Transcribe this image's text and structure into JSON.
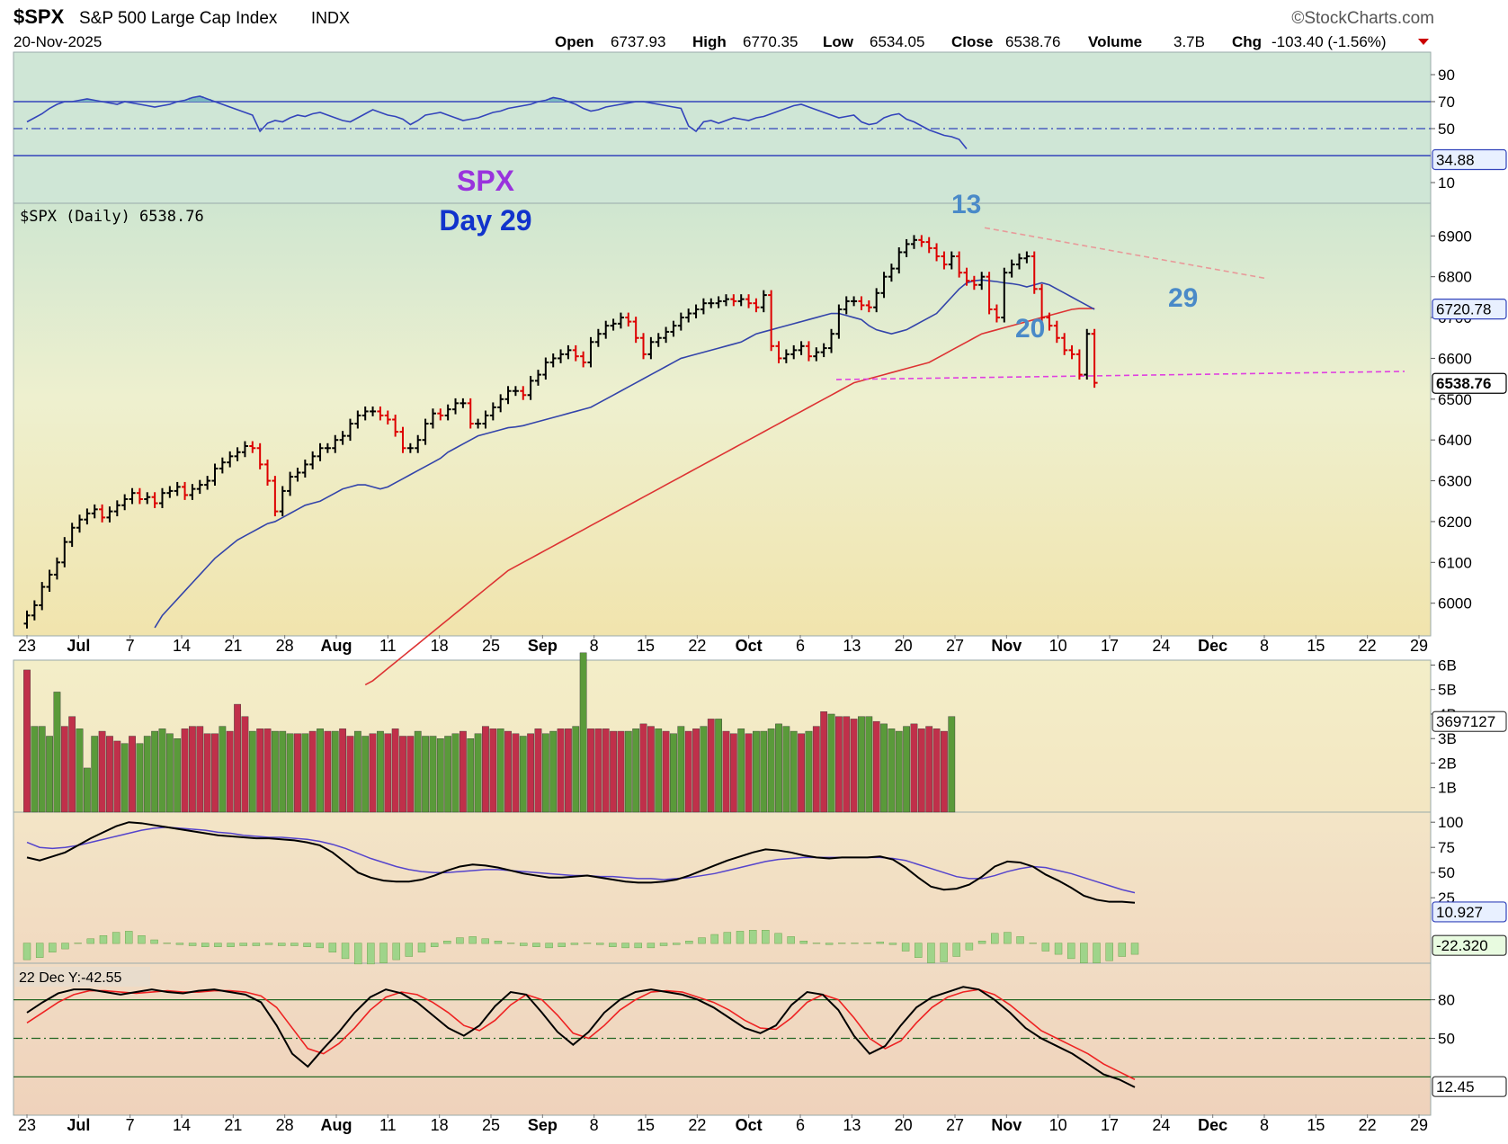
{
  "header": {
    "symbol": "$SPX",
    "name": "S&P 500 Large Cap Index",
    "exchange": "INDX",
    "date": "20-Nov-2025",
    "brand": "©StockCharts.com",
    "open_label": "Open",
    "open": "6737.93",
    "high_label": "High",
    "high": "6770.35",
    "low_label": "Low",
    "low": "6534.05",
    "close_label": "Close",
    "close": "6538.76",
    "volume_label": "Volume",
    "volume": "3.7B",
    "chg_label": "Chg",
    "chg": "-103.40 (-1.56%)"
  },
  "annotations": {
    "spx": "SPX",
    "day": "Day 29",
    "count_13": "13",
    "count_20": "20",
    "count_29": "29",
    "legend": "$SPX (Daily) 6538.76",
    "osc_label": "22 Dec Y:-42.55"
  },
  "colors": {
    "up": "#000000",
    "down": "#dd0000",
    "ma_short": "#3344aa",
    "ma_long": "#dd3333",
    "trendline_top": "#e89a9a",
    "support_line": "#e040e0",
    "count": "#4a8ac8",
    "spx_text": "#9933dd",
    "day_text": "#1133cc",
    "vol_up": "#5a9a3a",
    "vol_down": "#c0304a"
  },
  "x_axis": {
    "labels": [
      "23",
      "Jul",
      "7",
      "14",
      "21",
      "28",
      "Aug",
      "11",
      "18",
      "25",
      "Sep",
      "8",
      "15",
      "22",
      "Oct",
      "6",
      "13",
      "20",
      "27",
      "Nov",
      "10",
      "17",
      "24",
      "Dec",
      "8",
      "15",
      "22",
      "29"
    ],
    "bold": [
      "Jul",
      "Aug",
      "Sep",
      "Oct",
      "Nov",
      "Dec"
    ]
  },
  "chart_data": [
    {
      "type": "line",
      "name": "RSI panel",
      "ylim": [
        0,
        100
      ],
      "ticks": [
        "90",
        "70",
        "50",
        "10"
      ],
      "levels": [
        70,
        50,
        30
      ],
      "last_value": "34.88",
      "values": [
        55,
        58,
        61,
        65,
        68,
        70,
        70,
        71,
        72,
        71,
        70,
        69,
        68,
        70,
        69,
        68,
        67,
        66,
        67,
        68,
        70,
        71,
        73,
        74,
        72,
        70,
        68,
        66,
        64,
        62,
        60,
        48,
        54,
        56,
        55,
        58,
        60,
        59,
        61,
        62,
        60,
        58,
        56,
        55,
        58,
        61,
        64,
        62,
        60,
        59,
        57,
        53,
        56,
        60,
        61,
        62,
        60,
        58,
        56,
        57,
        58,
        60,
        62,
        63,
        65,
        66,
        67,
        68,
        70,
        71,
        73,
        72,
        70,
        68,
        65,
        63,
        64,
        66,
        67,
        68,
        69,
        70,
        70,
        69,
        68,
        67,
        66,
        65,
        52,
        48,
        55,
        56,
        54,
        56,
        58,
        57,
        56,
        58,
        59,
        61,
        63,
        65,
        67,
        68,
        66,
        64,
        62,
        60,
        58,
        59,
        60,
        55,
        53,
        54,
        58,
        60,
        61,
        57,
        55,
        52,
        49,
        47,
        45,
        44,
        42,
        35
      ]
    },
    {
      "type": "ohlc",
      "name": "$SPX (Daily)",
      "ylim": [
        5920,
        6980
      ],
      "ticks": [
        "6900",
        "6800",
        "6700",
        "6600",
        "6500",
        "6400",
        "6300",
        "6200",
        "6100",
        "6000"
      ],
      "last_price": "6538.76",
      "ma_label": "6720.78",
      "close": [
        5970,
        5995,
        6040,
        6070,
        6100,
        6150,
        6185,
        6205,
        6220,
        6230,
        6210,
        6225,
        6240,
        6255,
        6270,
        6255,
        6260,
        6245,
        6270,
        6275,
        6285,
        6265,
        6280,
        6290,
        6300,
        6330,
        6345,
        6360,
        6370,
        6385,
        6380,
        6340,
        6300,
        6225,
        6275,
        6310,
        6320,
        6340,
        6360,
        6380,
        6380,
        6400,
        6410,
        6440,
        6460,
        6470,
        6470,
        6460,
        6450,
        6420,
        6380,
        6380,
        6400,
        6440,
        6465,
        6460,
        6475,
        6490,
        6490,
        6440,
        6440,
        6460,
        6480,
        6500,
        6520,
        6520,
        6510,
        6545,
        6560,
        6590,
        6600,
        6610,
        6620,
        6605,
        6590,
        6640,
        6660,
        6680,
        6685,
        6700,
        6690,
        6650,
        6610,
        6640,
        6650,
        6665,
        6680,
        6700,
        6710,
        6720,
        6735,
        6735,
        6740,
        6745,
        6740,
        6745,
        6735,
        6725,
        6755,
        6630,
        6600,
        6610,
        6620,
        6630,
        6605,
        6615,
        6625,
        6660,
        6720,
        6740,
        6740,
        6730,
        6725,
        6760,
        6800,
        6820,
        6860,
        6880,
        6890,
        6885,
        6870,
        6850,
        6830,
        6850,
        6810,
        6790,
        6780,
        6800,
        6720,
        6700,
        6810,
        6830,
        6845,
        6850,
        6770,
        6700,
        6680,
        6650,
        6620,
        6610,
        6560,
        6660,
        6540
      ],
      "ma_short": [
        5940,
        5970,
        5990,
        6010,
        6030,
        6050,
        6070,
        6090,
        6110,
        6125,
        6140,
        6155,
        6165,
        6175,
        6185,
        6195,
        6200,
        6210,
        6220,
        6230,
        6240,
        6245,
        6250,
        6260,
        6270,
        6280,
        6285,
        6290,
        6290,
        6285,
        6280,
        6285,
        6295,
        6305,
        6315,
        6325,
        6335,
        6345,
        6355,
        6370,
        6380,
        6390,
        6400,
        6410,
        6415,
        6420,
        6425,
        6430,
        6432,
        6435,
        6440,
        6445,
        6450,
        6455,
        6460,
        6465,
        6470,
        6475,
        6480,
        6490,
        6500,
        6510,
        6520,
        6530,
        6540,
        6550,
        6560,
        6570,
        6580,
        6590,
        6600,
        6605,
        6610,
        6615,
        6620,
        6625,
        6630,
        6635,
        6640,
        6650,
        6660,
        6665,
        6670,
        6675,
        6680,
        6685,
        6690,
        6695,
        6700,
        6705,
        6710,
        6710,
        6705,
        6700,
        6695,
        6680,
        6670,
        6665,
        6660,
        6665,
        6670,
        6680,
        6690,
        6700,
        6710,
        6730,
        6750,
        6770,
        6785,
        6790,
        6792,
        6790,
        6788,
        6785,
        6783,
        6780,
        6775,
        6780,
        6785,
        6780,
        6770,
        6760,
        6750,
        6740,
        6730,
        6720
      ],
      "ma_long": [
        5800,
        5810,
        5825,
        5840,
        5855,
        5870,
        5885,
        5900,
        5915,
        5930,
        5945,
        5960,
        5975,
        5990,
        6005,
        6020,
        6035,
        6050,
        6065,
        6080,
        6090,
        6100,
        6110,
        6120,
        6130,
        6140,
        6150,
        6160,
        6170,
        6180,
        6190,
        6200,
        6210,
        6220,
        6230,
        6240,
        6250,
        6260,
        6270,
        6280,
        6290,
        6300,
        6310,
        6320,
        6330,
        6340,
        6350,
        6360,
        6370,
        6380,
        6390,
        6400,
        6410,
        6420,
        6430,
        6440,
        6450,
        6460,
        6470,
        6480,
        6490,
        6500,
        6510,
        6520,
        6530,
        6540,
        6545,
        6550,
        6555,
        6560,
        6565,
        6570,
        6575,
        6580,
        6585,
        6590,
        6600,
        6610,
        6620,
        6630,
        6640,
        6650,
        6660,
        6665,
        6670,
        6675,
        6680,
        6685,
        6690,
        6695,
        6700,
        6705,
        6710,
        6715,
        6720,
        6722,
        6722,
        6722
      ]
    },
    {
      "type": "bar",
      "name": "Volume",
      "ylim": [
        0,
        6.2
      ],
      "ticks": [
        "6B",
        "5B",
        "4B",
        "3B",
        "2B",
        "1B"
      ],
      "last_value": "3697127",
      "values": [
        5.8,
        3.5,
        3.5,
        3.1,
        4.9,
        3.5,
        3.9,
        3.4,
        1.8,
        3.1,
        3.3,
        3.1,
        2.9,
        2.8,
        3.1,
        2.8,
        3.1,
        3.3,
        3.4,
        3.2,
        3.0,
        3.4,
        3.5,
        3.5,
        3.2,
        3.2,
        3.5,
        3.3,
        4.4,
        3.9,
        3.3,
        3.4,
        3.4,
        3.3,
        3.3,
        3.2,
        3.2,
        3.2,
        3.3,
        3.4,
        3.3,
        3.3,
        3.4,
        3.1,
        3.3,
        3.1,
        3.2,
        3.3,
        3.2,
        3.4,
        3.1,
        3.1,
        3.3,
        3.1,
        3.1,
        3.0,
        3.1,
        3.2,
        3.3,
        3.0,
        3.2,
        3.5,
        3.4,
        3.4,
        3.3,
        3.2,
        3.1,
        3.2,
        3.4,
        3.2,
        3.3,
        3.4,
        3.4,
        3.5,
        6.5,
        3.4,
        3.4,
        3.4,
        3.3,
        3.3,
        3.3,
        3.4,
        3.6,
        3.5,
        3.4,
        3.3,
        3.2,
        3.5,
        3.3,
        3.4,
        3.5,
        3.8,
        3.8,
        3.3,
        3.2,
        3.4,
        3.2,
        3.3,
        3.3,
        3.4,
        3.6,
        3.5,
        3.3,
        3.2,
        3.3,
        3.5,
        4.1,
        4.0,
        3.9,
        3.9,
        3.8,
        3.9,
        3.9,
        3.7,
        3.6,
        3.4,
        3.3,
        3.5,
        3.6,
        3.4,
        3.5,
        3.4,
        3.3,
        3.9
      ],
      "up": [
        false,
        true,
        true,
        true,
        true,
        false,
        false,
        true,
        true,
        true,
        false,
        false,
        false,
        true,
        false,
        true,
        true,
        true,
        true,
        true,
        true,
        false,
        false,
        false,
        false,
        false,
        true,
        false,
        false,
        false,
        true,
        false,
        false,
        true,
        true,
        true,
        false,
        true,
        false,
        true,
        false,
        true,
        false,
        false,
        true,
        true,
        false,
        true,
        false,
        false,
        false,
        false,
        true,
        true,
        true,
        true,
        true,
        true,
        false,
        true,
        true,
        false,
        false,
        true,
        false,
        false,
        true,
        false,
        false,
        true,
        true,
        false,
        false,
        true,
        true,
        false,
        false,
        false,
        false,
        false,
        true,
        true,
        false,
        false,
        true,
        false,
        true,
        true,
        false,
        false,
        true,
        false,
        true,
        false,
        false,
        true,
        false,
        true,
        true,
        true,
        true,
        true,
        true,
        false,
        true,
        false,
        false,
        true,
        false,
        false,
        false,
        true,
        true,
        false,
        true,
        true,
        true,
        true,
        false,
        false,
        false,
        false,
        false,
        true,
        false,
        false
      ]
    },
    {
      "type": "line",
      "name": "Momentum panel",
      "ylim": [
        -40,
        110
      ],
      "ticks": [
        "100",
        "75",
        "50",
        "25"
      ],
      "last_value": "10.927",
      "last_value_2": "-22.320",
      "line": [
        65,
        62,
        66,
        70,
        77,
        84,
        90,
        96,
        100,
        99,
        97,
        95,
        93,
        91,
        89,
        87,
        86,
        85,
        84,
        84,
        83,
        82,
        80,
        77,
        70,
        60,
        50,
        45,
        42,
        41,
        41,
        43,
        47,
        52,
        56,
        58,
        57,
        55,
        52,
        49,
        47,
        45,
        45,
        46,
        47,
        45,
        43,
        41,
        40,
        40,
        41,
        43,
        47,
        52,
        57,
        62,
        66,
        70,
        73,
        72,
        70,
        67,
        65,
        64,
        65,
        65,
        65,
        66,
        63,
        55,
        45,
        36,
        33,
        34,
        38,
        46,
        56,
        61,
        60,
        56,
        48,
        42,
        35,
        27,
        23,
        21,
        21,
        20
      ],
      "signal": [
        80,
        75,
        74,
        75,
        77,
        80,
        83,
        86,
        89,
        92,
        94,
        95,
        94,
        93,
        92,
        90,
        89,
        87,
        86,
        85,
        85,
        84,
        83,
        81,
        78,
        74,
        69,
        64,
        60,
        56,
        53,
        51,
        50,
        50,
        51,
        52,
        53,
        53,
        52,
        51,
        50,
        49,
        48,
        47,
        47,
        46,
        46,
        45,
        44,
        44,
        43,
        44,
        45,
        47,
        49,
        52,
        55,
        58,
        61,
        63,
        64,
        65,
        65,
        65,
        65,
        65,
        65,
        65,
        64,
        62,
        58,
        54,
        50,
        46,
        44,
        44,
        47,
        51,
        54,
        56,
        55,
        52,
        49,
        45,
        41,
        37,
        33,
        30
      ],
      "histogram": [
        -15,
        -13,
        -8,
        -5,
        0,
        4,
        7,
        10,
        11,
        7,
        3,
        0,
        -1,
        -2,
        -3,
        -3,
        -3,
        -2,
        -2,
        -1,
        -2,
        -2,
        -3,
        -4,
        -8,
        -14,
        -19,
        -19,
        -18,
        -15,
        -12,
        -8,
        -3,
        2,
        5,
        6,
        4,
        2,
        0,
        -2,
        -3,
        -4,
        -3,
        -1,
        0,
        -1,
        -3,
        -4,
        -4,
        -4,
        -2,
        -1,
        2,
        5,
        8,
        10,
        11,
        12,
        12,
        9,
        6,
        2,
        0,
        -1,
        0,
        0,
        0,
        1,
        -1,
        -7,
        -13,
        -18,
        -17,
        -12,
        -6,
        2,
        9,
        10,
        6,
        0,
        -7,
        -10,
        -14,
        -18,
        -18,
        -16,
        -12,
        -10
      ]
    },
    {
      "type": "line",
      "name": "Stochastic panel",
      "ylim": [
        0,
        100
      ],
      "ticks": [
        "80",
        "50"
      ],
      "levels": [
        80,
        50,
        20
      ],
      "last_value": "12.45",
      "k": [
        70,
        78,
        85,
        88,
        88,
        86,
        84,
        86,
        88,
        86,
        85,
        87,
        88,
        86,
        84,
        78,
        60,
        38,
        28,
        42,
        55,
        70,
        82,
        88,
        85,
        78,
        68,
        58,
        52,
        60,
        75,
        86,
        84,
        70,
        55,
        45,
        55,
        70,
        80,
        86,
        88,
        86,
        84,
        80,
        74,
        66,
        58,
        54,
        60,
        76,
        86,
        84,
        72,
        52,
        38,
        44,
        60,
        74,
        82,
        86,
        90,
        88,
        80,
        70,
        58,
        50,
        44,
        38,
        30,
        22,
        18,
        12
      ],
      "d": [
        62,
        70,
        78,
        84,
        87,
        87,
        86,
        85,
        86,
        87,
        86,
        86,
        87,
        87,
        86,
        83,
        74,
        58,
        42,
        38,
        46,
        58,
        72,
        82,
        86,
        84,
        78,
        70,
        60,
        56,
        64,
        76,
        84,
        80,
        68,
        54,
        50,
        60,
        72,
        80,
        86,
        87,
        86,
        82,
        78,
        72,
        64,
        58,
        57,
        66,
        78,
        84,
        80,
        66,
        50,
        42,
        48,
        62,
        74,
        82,
        86,
        88,
        84,
        76,
        66,
        56,
        50,
        44,
        38,
        30,
        24,
        18
      ]
    }
  ]
}
